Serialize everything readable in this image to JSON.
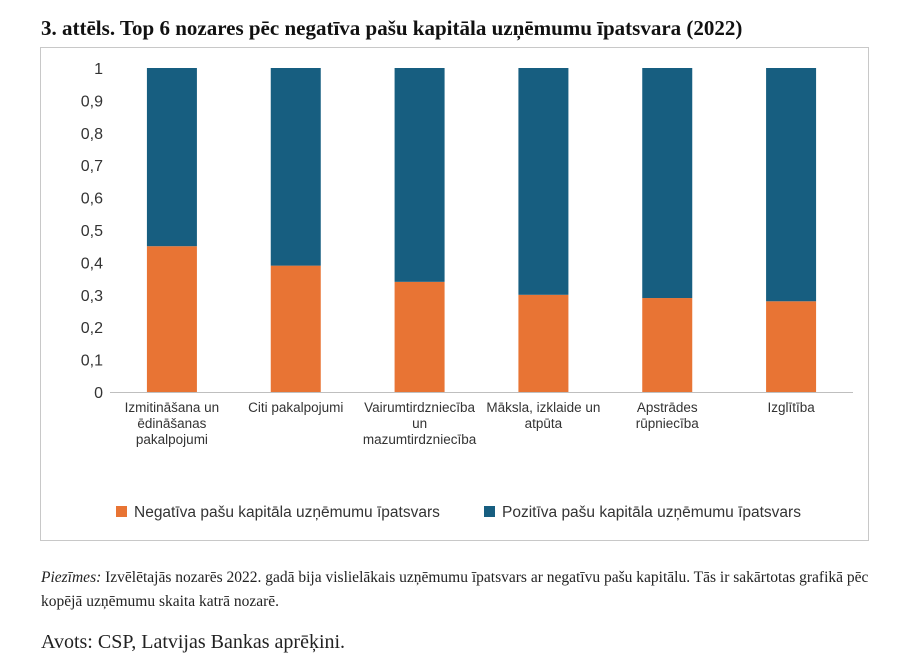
{
  "title": "3. attēls. Top 6 nozares pēc negatīva pašu kapitāla uzņēmumu īpatsvara (2022)",
  "chart_data": {
    "type": "bar",
    "stacked": true,
    "categories": [
      [
        "Izmitināšana un",
        "ēdināšanas",
        "pakalpojumi"
      ],
      [
        "Citi pakalpojumi"
      ],
      [
        "Vairumtirdzniecība",
        "un",
        "mazumtirdzniecība"
      ],
      [
        "Māksla, izklaide un",
        "atpūta"
      ],
      [
        "Apstrādes",
        "rūpniecība"
      ],
      [
        "Izglītība"
      ]
    ],
    "series": [
      {
        "name": "Negatīva pašu kapitāla uzņēmumu īpatsvars",
        "color": "#E87434",
        "values": [
          0.45,
          0.39,
          0.34,
          0.3,
          0.29,
          0.28
        ]
      },
      {
        "name": "Pozitīva pašu kapitāla uzņēmumu īpatsvars",
        "color": "#175E80",
        "values": [
          0.55,
          0.61,
          0.66,
          0.7,
          0.71,
          0.72
        ]
      }
    ],
    "yticks": [
      "0",
      "0,1",
      "0,2",
      "0,3",
      "0,4",
      "0,5",
      "0,6",
      "0,7",
      "0,8",
      "0,9",
      "1"
    ],
    "ylim": [
      0,
      1
    ],
    "grid": false,
    "legend_position": "bottom"
  },
  "note": {
    "label": "Piezīmes:",
    "text": " Izvēlētajās nozarēs 2022. gadā bija vislielākais uzņēmumu īpatsvars ar negatīvu pašu kapitālu. Tās ir sakārtotas grafikā pēc kopējā uzņēmumu skaita katrā nozarē."
  },
  "source": "Avots: CSP, Latvijas Bankas aprēķini."
}
